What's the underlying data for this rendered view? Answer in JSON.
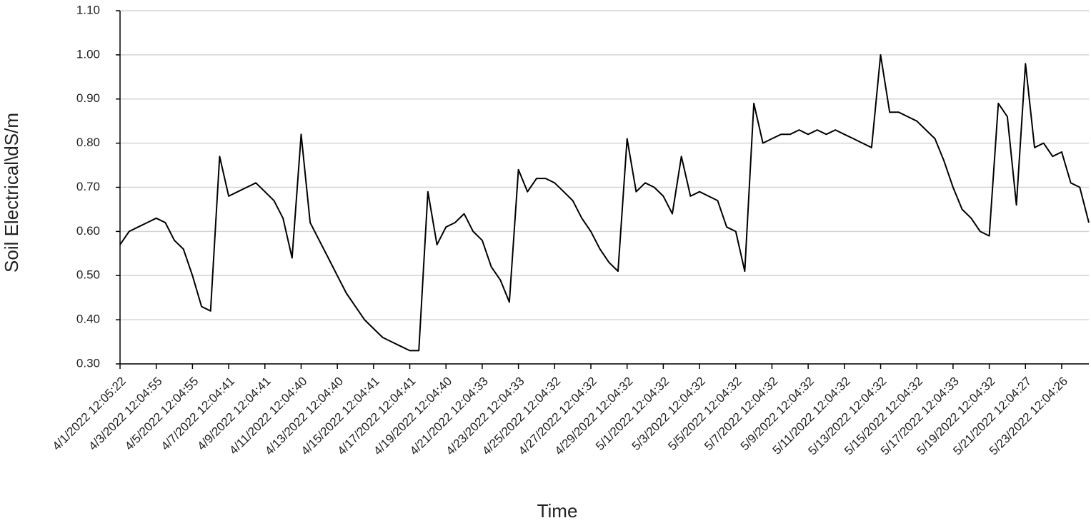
{
  "chart_data": {
    "type": "line",
    "x_label": "Time",
    "y_label": "Soil Electrical\\dS/m",
    "categories": [
      "4/1/2022 12:05:22",
      null,
      null,
      null,
      "4/3/2022 12:04:55",
      null,
      null,
      null,
      "4/5/2022 12:04:55",
      null,
      null,
      null,
      "4/7/2022 12:04:41",
      null,
      null,
      null,
      "4/9/2022 12:04:41",
      null,
      null,
      null,
      "4/11/2022 12:04:40",
      null,
      null,
      null,
      "4/13/2022 12:04:40",
      null,
      null,
      null,
      "4/15/2022 12:04:41",
      null,
      null,
      null,
      "4/17/2022 12:04:41",
      null,
      null,
      null,
      "4/19/2022 12:04:40",
      null,
      null,
      null,
      "4/21/2022 12:04:33",
      null,
      null,
      null,
      "4/23/2022 12:04:33",
      null,
      null,
      null,
      "4/25/2022 12:04:32",
      null,
      null,
      null,
      "4/27/2022 12:04:32",
      null,
      null,
      null,
      "4/29/2022 12:04:32",
      null,
      null,
      null,
      "5/1/2022 12:04:32",
      null,
      null,
      null,
      "5/3/2022 12:04:32",
      null,
      null,
      null,
      "5/5/2022 12:04:32",
      null,
      null,
      null,
      "5/7/2022 12:04:32",
      null,
      null,
      null,
      "5/9/2022 12:04:32",
      null,
      null,
      null,
      "5/11/2022 12:04:32",
      null,
      null,
      null,
      "5/13/2022 12:04:32",
      null,
      null,
      null,
      "5/15/2022 12:04:32",
      null,
      null,
      null,
      "5/17/2022 12:04:33",
      null,
      null,
      null,
      "5/19/2022 12:04:32",
      null,
      null,
      null,
      "5/21/2022 12:04:27",
      null,
      null,
      null,
      "5/23/2022 12:04:26",
      null,
      null,
      null
    ],
    "values": [
      0.57,
      0.6,
      0.61,
      0.62,
      0.63,
      0.62,
      0.58,
      0.56,
      0.5,
      0.43,
      0.42,
      0.77,
      0.68,
      0.69,
      0.7,
      0.71,
      0.69,
      0.67,
      0.63,
      0.54,
      0.82,
      0.62,
      0.58,
      0.54,
      0.5,
      0.46,
      0.43,
      0.4,
      0.38,
      0.36,
      0.35,
      0.34,
      0.33,
      0.33,
      0.69,
      0.57,
      0.61,
      0.62,
      0.64,
      0.6,
      0.58,
      0.52,
      0.49,
      0.44,
      0.74,
      0.69,
      0.72,
      0.72,
      0.71,
      0.69,
      0.67,
      0.63,
      0.6,
      0.56,
      0.53,
      0.51,
      0.81,
      0.69,
      0.71,
      0.7,
      0.68,
      0.64,
      0.77,
      0.68,
      0.69,
      0.68,
      0.67,
      0.61,
      0.6,
      0.51,
      0.89,
      0.8,
      0.81,
      0.82,
      0.82,
      0.83,
      0.82,
      0.83,
      0.82,
      0.83,
      0.82,
      0.81,
      0.8,
      0.79,
      1.0,
      0.87,
      0.87,
      0.86,
      0.85,
      0.83,
      0.81,
      0.76,
      0.7,
      0.65,
      0.63,
      0.6,
      0.59,
      0.89,
      0.86,
      0.66,
      0.98,
      0.79,
      0.8,
      0.77,
      0.78,
      0.71,
      0.7,
      0.62
    ],
    "color": "#000000",
    "ylim": [
      0.3,
      1.1
    ],
    "yticks": [
      {
        "value": 0.3,
        "label": "0.30"
      },
      {
        "value": 0.4,
        "label": "0.40"
      },
      {
        "value": 0.5,
        "label": "0.50"
      },
      {
        "value": 0.6,
        "label": "0.60"
      },
      {
        "value": 0.7,
        "label": "0.70"
      },
      {
        "value": 0.8,
        "label": "0.80"
      },
      {
        "value": 0.9,
        "label": "0.90"
      },
      {
        "value": 1.0,
        "label": "1.00"
      },
      {
        "value": 1.1,
        "label": "1.10"
      }
    ],
    "grid": true
  }
}
